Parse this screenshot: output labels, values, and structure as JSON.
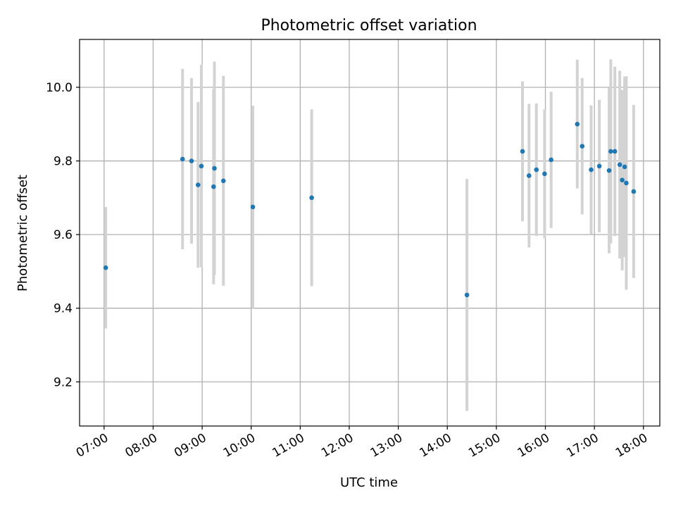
{
  "chart_data": {
    "type": "scatter",
    "title": "Photometric offset variation",
    "xlabel": "UTC time",
    "ylabel": "Photometric offset",
    "xlim": [
      "06:30",
      "18:20"
    ],
    "ylim": [
      9.08,
      10.13
    ],
    "grid": true,
    "x_ticks": [
      "07:00",
      "08:00",
      "09:00",
      "10:00",
      "11:00",
      "12:00",
      "13:00",
      "14:00",
      "15:00",
      "16:00",
      "17:00",
      "18:00"
    ],
    "y_ticks": [
      "9.2",
      "9.4",
      "9.6",
      "9.8",
      "10.0"
    ],
    "points_color": "#1f77b4",
    "errorbar_color": "#d3d3d3",
    "points": [
      {
        "x": "07:02",
        "y": 9.51,
        "err": 0.165
      },
      {
        "x": "08:36",
        "y": 9.805,
        "err": 0.245
      },
      {
        "x": "08:47",
        "y": 9.8,
        "err": 0.225
      },
      {
        "x": "08:55",
        "y": 9.735,
        "err": 0.225
      },
      {
        "x": "08:59",
        "y": 9.786,
        "err": 0.275
      },
      {
        "x": "09:14",
        "y": 9.73,
        "err": 0.265
      },
      {
        "x": "09:15",
        "y": 9.78,
        "err": 0.29
      },
      {
        "x": "09:26",
        "y": 9.746,
        "err": 0.285
      },
      {
        "x": "10:02",
        "y": 9.675,
        "err": 0.275
      },
      {
        "x": "11:14",
        "y": 9.7,
        "err": 0.24
      },
      {
        "x": "14:24",
        "y": 9.436,
        "err": 0.315
      },
      {
        "x": "15:32",
        "y": 9.826,
        "err": 0.19
      },
      {
        "x": "15:40",
        "y": 9.76,
        "err": 0.195
      },
      {
        "x": "15:49",
        "y": 9.776,
        "err": 0.18
      },
      {
        "x": "15:59",
        "y": 9.765,
        "err": 0.175
      },
      {
        "x": "16:07",
        "y": 9.803,
        "err": 0.185
      },
      {
        "x": "16:39",
        "y": 9.9,
        "err": 0.175
      },
      {
        "x": "16:45",
        "y": 9.84,
        "err": 0.185
      },
      {
        "x": "16:56",
        "y": 9.776,
        "err": 0.175
      },
      {
        "x": "17:06",
        "y": 9.786,
        "err": 0.18
      },
      {
        "x": "17:18",
        "y": 9.774,
        "err": 0.225
      },
      {
        "x": "17:20",
        "y": 9.826,
        "err": 0.25
      },
      {
        "x": "17:25",
        "y": 9.826,
        "err": 0.23
      },
      {
        "x": "17:31",
        "y": 9.79,
        "err": 0.255
      },
      {
        "x": "17:34",
        "y": 9.748,
        "err": 0.245
      },
      {
        "x": "17:37",
        "y": 9.784,
        "err": 0.245
      },
      {
        "x": "17:39",
        "y": 9.74,
        "err": 0.29
      },
      {
        "x": "17:48",
        "y": 9.717,
        "err": 0.235
      }
    ]
  }
}
